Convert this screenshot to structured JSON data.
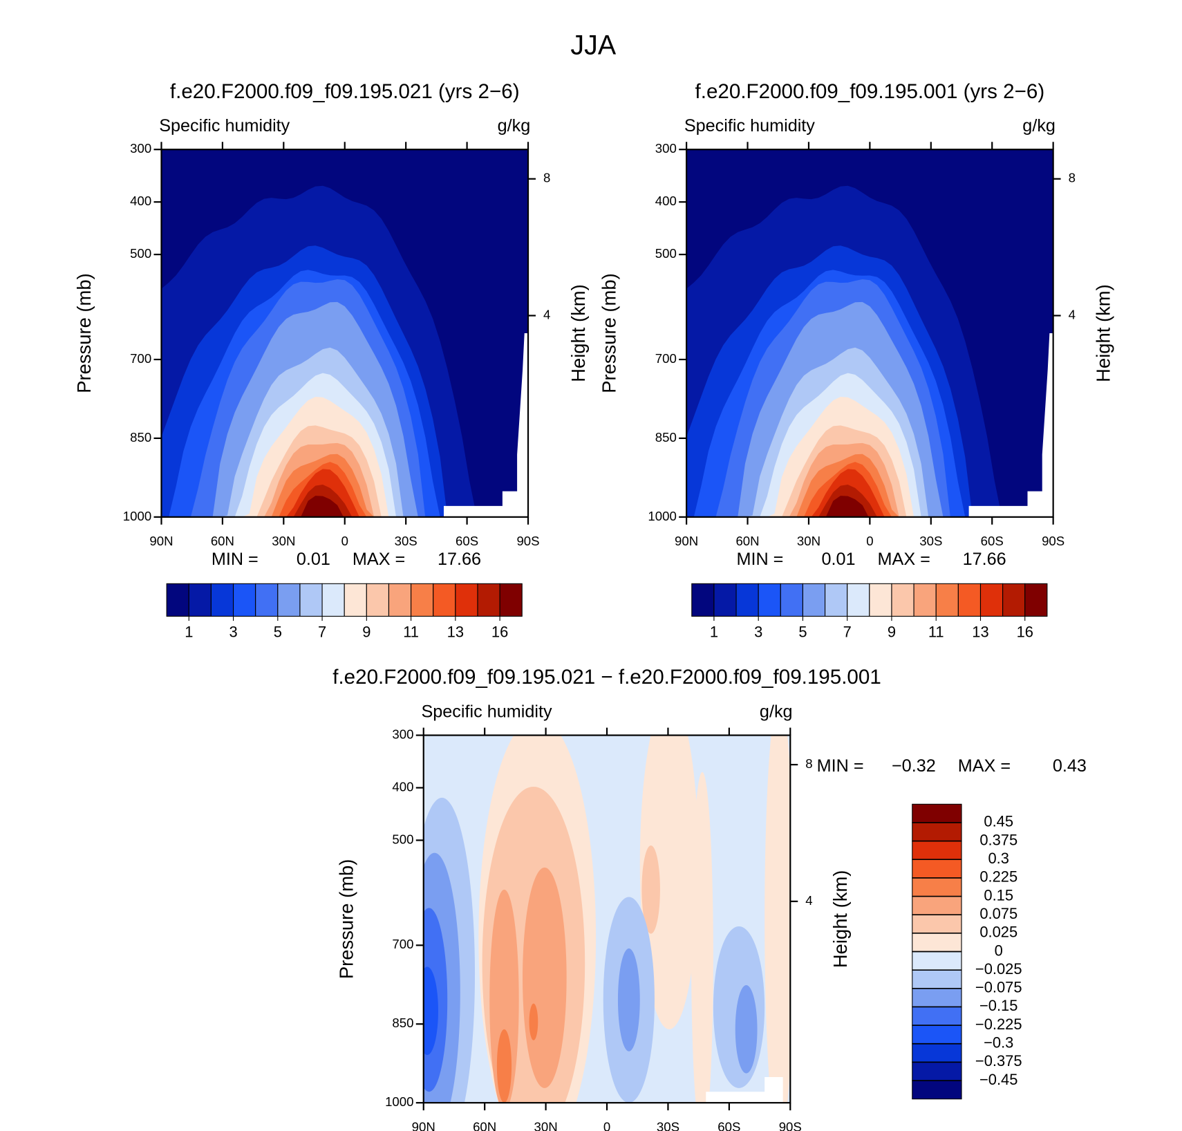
{
  "title": "JJA",
  "chart_data": [
    {
      "type": "contour",
      "title": "f.e20.F2000.f09_f09.195.021 (yrs 2−6)",
      "subtitle": "Specific humidity",
      "units": "g/kg",
      "ylabel": "Pressure (mb)",
      "y2label": "Height (km)",
      "xlim": [
        90,
        -90
      ],
      "xticks": [
        {
          "value": 90,
          "label": "90N"
        },
        {
          "value": 60,
          "label": "60N"
        },
        {
          "value": 30,
          "label": "30N"
        },
        0,
        {
          "value": -30,
          "label": "30S"
        },
        {
          "value": -60,
          "label": "60S"
        },
        {
          "value": -90,
          "label": "90S"
        }
      ],
      "ylim": [
        1000,
        300
      ],
      "yticks": [
        300,
        400,
        500,
        700,
        850,
        1000
      ],
      "y2ticks": [
        4,
        8
      ],
      "min_label": "MIN =",
      "min": 0.01,
      "max_label": "MAX =",
      "max": 17.66,
      "colorbar": {
        "orientation": "horizontal",
        "colors": [
          "#02067e",
          "#0519a6",
          "#0737d8",
          "#1b55f7",
          "#4170f4",
          "#7a9ef1",
          "#afc8f6",
          "#dbe9fb",
          "#fde6d6",
          "#fbc7ab",
          "#f9a47c",
          "#f77f48",
          "#f45a24",
          "#df300a",
          "#b31b02",
          "#7f0000"
        ],
        "labels": [
          1,
          3,
          5,
          7,
          9,
          11,
          13,
          16
        ]
      }
    },
    {
      "type": "contour",
      "title": "f.e20.F2000.f09_f09.195.001 (yrs 2−6)",
      "subtitle": "Specific humidity",
      "units": "g/kg",
      "ylabel": "Pressure (mb)",
      "y2label": "Height (km)",
      "xlim": [
        90,
        -90
      ],
      "xticks": [
        {
          "value": 90,
          "label": "90N"
        },
        {
          "value": 60,
          "label": "60N"
        },
        {
          "value": 30,
          "label": "30N"
        },
        0,
        {
          "value": -30,
          "label": "30S"
        },
        {
          "value": -60,
          "label": "60S"
        },
        {
          "value": -90,
          "label": "90S"
        }
      ],
      "ylim": [
        1000,
        300
      ],
      "yticks": [
        300,
        400,
        500,
        700,
        850,
        1000
      ],
      "y2ticks": [
        4,
        8
      ],
      "min_label": "MIN =",
      "min": 0.01,
      "max_label": "MAX =",
      "max": 17.66,
      "colorbar": {
        "orientation": "horizontal",
        "colors": [
          "#02067e",
          "#0519a6",
          "#0737d8",
          "#1b55f7",
          "#4170f4",
          "#7a9ef1",
          "#afc8f6",
          "#dbe9fb",
          "#fde6d6",
          "#fbc7ab",
          "#f9a47c",
          "#f77f48",
          "#f45a24",
          "#df300a",
          "#b31b02",
          "#7f0000"
        ],
        "labels": [
          1,
          3,
          5,
          7,
          9,
          11,
          13,
          16
        ]
      }
    },
    {
      "type": "contour",
      "title": "f.e20.F2000.f09_f09.195.021 − f.e20.F2000.f09_f09.195.001",
      "subtitle": "Specific humidity",
      "units": "g/kg",
      "ylabel": "Pressure (mb)",
      "y2label": "Height (km)",
      "xlim": [
        90,
        -90
      ],
      "xticks": [
        {
          "value": 90,
          "label": "90N"
        },
        {
          "value": 60,
          "label": "60N"
        },
        {
          "value": 30,
          "label": "30N"
        },
        0,
        {
          "value": -30,
          "label": "30S"
        },
        {
          "value": -60,
          "label": "60S"
        },
        {
          "value": -90,
          "label": "90S"
        }
      ],
      "ylim": [
        1000,
        300
      ],
      "yticks": [
        300,
        400,
        500,
        700,
        850,
        1000
      ],
      "y2ticks": [
        4,
        8
      ],
      "min_label": "MIN =",
      "min": {
        "value": -0.32,
        "label": "−0.32"
      },
      "max_label": "MAX =",
      "max": 0.43,
      "colorbar": {
        "orientation": "vertical",
        "colors": [
          "#7f0000",
          "#b31b02",
          "#df300a",
          "#f45a24",
          "#f77f48",
          "#f9a47c",
          "#fbc7ab",
          "#fde6d6",
          "#dbe9fb",
          "#afc8f6",
          "#7a9ef1",
          "#4170f4",
          "#1b55f7",
          "#0737d8",
          "#0519a6",
          "#02067e"
        ],
        "labels": [
          0.45,
          0.375,
          0.3,
          0.225,
          0.15,
          0.075,
          0.025,
          0,
          {
            "value": -0.025,
            "label": "−0.025"
          },
          {
            "value": -0.075,
            "label": "−0.075"
          },
          {
            "value": -0.15,
            "label": "−0.15"
          },
          {
            "value": -0.225,
            "label": "−0.225"
          },
          {
            "value": -0.3,
            "label": "−0.3"
          },
          {
            "value": -0.375,
            "label": "−0.375"
          },
          {
            "value": -0.45,
            "label": "−0.45"
          }
        ]
      }
    }
  ]
}
